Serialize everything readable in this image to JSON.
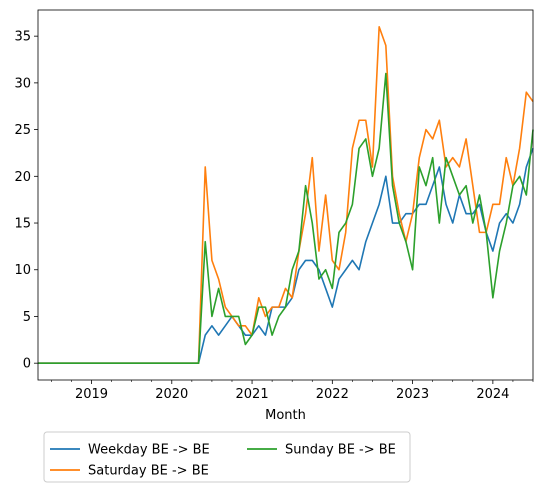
{
  "chart_data": {
    "type": "line",
    "title": "",
    "xlabel": "Month",
    "ylabel": "",
    "xlim": [
      "2018-05",
      "2024-07"
    ],
    "ylim": [
      -1.8,
      37.8
    ],
    "grid": false,
    "legend_placement": "below plot, two columns",
    "x_ticks": [
      "2019",
      "2020",
      "2021",
      "2022",
      "2023",
      "2024"
    ],
    "y_ticks": [
      0,
      5,
      10,
      15,
      20,
      25,
      30,
      35
    ],
    "x": [
      "2018-05",
      "2018-06",
      "2018-07",
      "2018-08",
      "2018-09",
      "2018-10",
      "2018-11",
      "2018-12",
      "2019-01",
      "2019-02",
      "2019-03",
      "2019-04",
      "2019-05",
      "2019-06",
      "2019-07",
      "2019-08",
      "2019-09",
      "2019-10",
      "2019-11",
      "2019-12",
      "2020-01",
      "2020-02",
      "2020-03",
      "2020-04",
      "2020-05",
      "2020-06",
      "2020-07",
      "2020-08",
      "2020-09",
      "2020-10",
      "2020-11",
      "2020-12",
      "2021-01",
      "2021-02",
      "2021-03",
      "2021-04",
      "2021-05",
      "2021-06",
      "2021-07",
      "2021-08",
      "2021-09",
      "2021-10",
      "2021-11",
      "2021-12",
      "2022-01",
      "2022-02",
      "2022-03",
      "2022-04",
      "2022-05",
      "2022-06",
      "2022-07",
      "2022-08",
      "2022-09",
      "2022-10",
      "2022-11",
      "2022-12",
      "2023-01",
      "2023-02",
      "2023-03",
      "2023-04",
      "2023-05",
      "2023-06",
      "2023-07",
      "2023-08",
      "2023-09",
      "2023-10",
      "2023-11",
      "2023-12",
      "2024-01",
      "2024-02",
      "2024-03",
      "2024-04",
      "2024-05",
      "2024-06",
      "2024-07"
    ],
    "series": [
      {
        "name": "Weekday BE -> BE",
        "color": "#1f77b4",
        "values": [
          0,
          0,
          0,
          0,
          0,
          0,
          0,
          0,
          0,
          0,
          0,
          0,
          0,
          0,
          0,
          0,
          0,
          0,
          0,
          0,
          0,
          0,
          0,
          0,
          0,
          3,
          4,
          3,
          4,
          5,
          4,
          3,
          3,
          4,
          3,
          6,
          6,
          6,
          7,
          10,
          11,
          11,
          10,
          8,
          6,
          9,
          10,
          11,
          10,
          13,
          15,
          17,
          20,
          15,
          15,
          16,
          16,
          17,
          17,
          19,
          21,
          17,
          15,
          18,
          16,
          16,
          17,
          14,
          12,
          15,
          16,
          15,
          17,
          21,
          23
        ]
      },
      {
        "name": "Saturday BE -> BE",
        "color": "#ff7f0e",
        "values": [
          0,
          0,
          0,
          0,
          0,
          0,
          0,
          0,
          0,
          0,
          0,
          0,
          0,
          0,
          0,
          0,
          0,
          0,
          0,
          0,
          0,
          0,
          0,
          0,
          0,
          21,
          11,
          9,
          6,
          5,
          4,
          4,
          3,
          7,
          5,
          6,
          6,
          8,
          7,
          12,
          16,
          22,
          12,
          18,
          11,
          10,
          14,
          23,
          26,
          26,
          21,
          36,
          34,
          20,
          16,
          13,
          16,
          22,
          25,
          24,
          26,
          21,
          22,
          21,
          24,
          19,
          14,
          14,
          17,
          17,
          22,
          19,
          23,
          29,
          28
        ]
      },
      {
        "name": "Sunday BE -> BE",
        "color": "#2ca02c",
        "values": [
          0,
          0,
          0,
          0,
          0,
          0,
          0,
          0,
          0,
          0,
          0,
          0,
          0,
          0,
          0,
          0,
          0,
          0,
          0,
          0,
          0,
          0,
          0,
          0,
          0,
          13,
          5,
          8,
          5,
          5,
          5,
          2,
          3,
          6,
          6,
          3,
          5,
          6,
          10,
          12,
          19,
          15,
          9,
          10,
          8,
          14,
          15,
          17,
          23,
          24,
          20,
          23,
          31,
          19,
          15,
          13,
          10,
          21,
          19,
          22,
          15,
          22,
          20,
          18,
          19,
          15,
          18,
          14,
          7,
          12,
          15,
          19,
          20,
          18,
          25
        ]
      }
    ]
  }
}
